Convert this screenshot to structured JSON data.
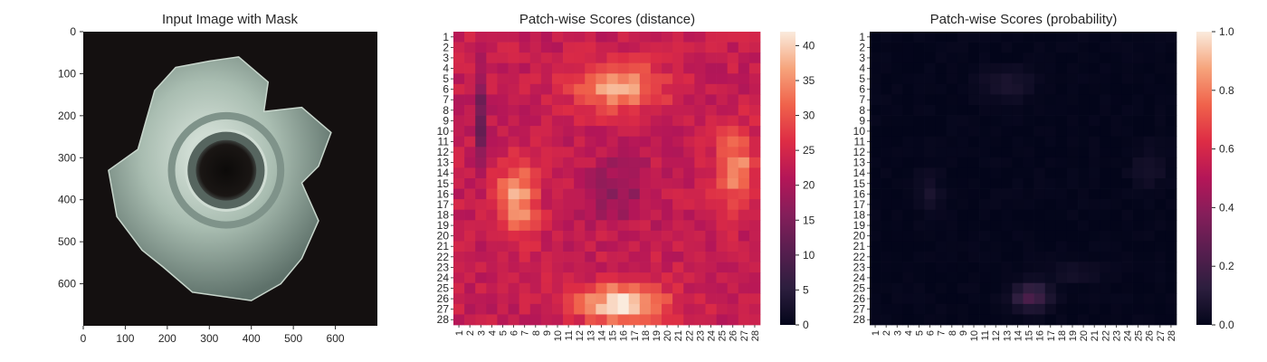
{
  "chart_data": [
    {
      "type": "image",
      "title": "Input Image with Mask",
      "xlabel": "",
      "ylabel": "",
      "xlim": [
        0,
        700
      ],
      "ylim": [
        700,
        0
      ],
      "xticks": [
        0,
        100,
        200,
        300,
        400,
        500,
        600
      ],
      "yticks": [
        0,
        100,
        200,
        300,
        400,
        500,
        600
      ],
      "image_content": "metal-t-nut-photo",
      "colors": {
        "background": "#141010",
        "metal": "#a8bdb0",
        "highlight": "#e2ece4"
      }
    },
    {
      "type": "heatmap",
      "title": "Patch-wise Scores (distance)",
      "xlabel": "",
      "ylabel": "",
      "rows": 28,
      "cols": 28,
      "x_categories": [
        "1",
        "2",
        "3",
        "4",
        "5",
        "6",
        "7",
        "8",
        "9",
        "10",
        "11",
        "12",
        "13",
        "14",
        "15",
        "16",
        "17",
        "18",
        "19",
        "20",
        "21",
        "22",
        "23",
        "24",
        "25",
        "26",
        "27",
        "28"
      ],
      "y_categories": [
        "1",
        "2",
        "3",
        "4",
        "5",
        "6",
        "7",
        "8",
        "9",
        "10",
        "11",
        "12",
        "13",
        "14",
        "15",
        "16",
        "17",
        "18",
        "19",
        "20",
        "21",
        "22",
        "23",
        "24",
        "25",
        "26",
        "27",
        "28"
      ],
      "colorbar": {
        "min": 0,
        "max": 42,
        "ticks": [
          0,
          5,
          10,
          15,
          20,
          25,
          30,
          35,
          40
        ],
        "colormap": "rocket"
      },
      "values_description": "approx. 30-42 on ring of nut (top band rows 3-8, bottom band rows 22-27 peaking ~42, side lobes rows 12-20), approx. 18-25 in center hole and outer edges, minimum ~10 at rows 1-11 col 2",
      "model": {
        "base": 23,
        "blobs": [
          [
            14.5,
            4.8,
            4,
            2.2,
            14
          ],
          [
            15.0,
            25.5,
            4,
            1.8,
            19
          ],
          [
            5.3,
            15.5,
            1.8,
            3.5,
            14
          ],
          [
            25.3,
            12.5,
            1.8,
            3.5,
            12
          ],
          [
            14.5,
            14.5,
            3,
            3,
            -6
          ],
          [
            2,
            8,
            0.6,
            4,
            -10
          ]
        ]
      }
    },
    {
      "type": "heatmap",
      "title": "Patch-wise Scores (probability)",
      "xlabel": "",
      "ylabel": "",
      "rows": 28,
      "cols": 28,
      "x_categories": [
        "1",
        "2",
        "3",
        "4",
        "5",
        "6",
        "7",
        "8",
        "9",
        "10",
        "11",
        "12",
        "13",
        "14",
        "15",
        "16",
        "17",
        "18",
        "19",
        "20",
        "21",
        "22",
        "23",
        "24",
        "25",
        "26",
        "27",
        "28"
      ],
      "y_categories": [
        "1",
        "2",
        "3",
        "4",
        "5",
        "6",
        "7",
        "8",
        "9",
        "10",
        "11",
        "12",
        "13",
        "14",
        "15",
        "16",
        "17",
        "18",
        "19",
        "20",
        "21",
        "22",
        "23",
        "24",
        "25",
        "26",
        "27",
        "28"
      ],
      "colorbar": {
        "min": 0.0,
        "max": 1.0,
        "ticks": [
          "0.0",
          "0.2",
          "0.4",
          "0.6",
          "0.8",
          "1.0"
        ],
        "colormap": "rocket"
      },
      "values_description": "near 0 everywhere; max approx 0.25 at rows 24-26 cols 13-16; faint approx 0.05-0.1 patches at rows 3-6 cols 10-14, rows 13-17 cols 4-6, rows 11-14 cols 24-27",
      "model": {
        "base": 0.005,
        "blobs": [
          [
            14.2,
            24.8,
            1.6,
            1.2,
            0.22
          ],
          [
            12.0,
            4.5,
            2.5,
            1.5,
            0.07
          ],
          [
            5.0,
            15.0,
            1.0,
            2.0,
            0.06
          ],
          [
            25.0,
            12.5,
            1.5,
            2.0,
            0.05
          ],
          [
            18.0,
            22.5,
            2.5,
            1.0,
            0.05
          ]
        ]
      }
    }
  ]
}
